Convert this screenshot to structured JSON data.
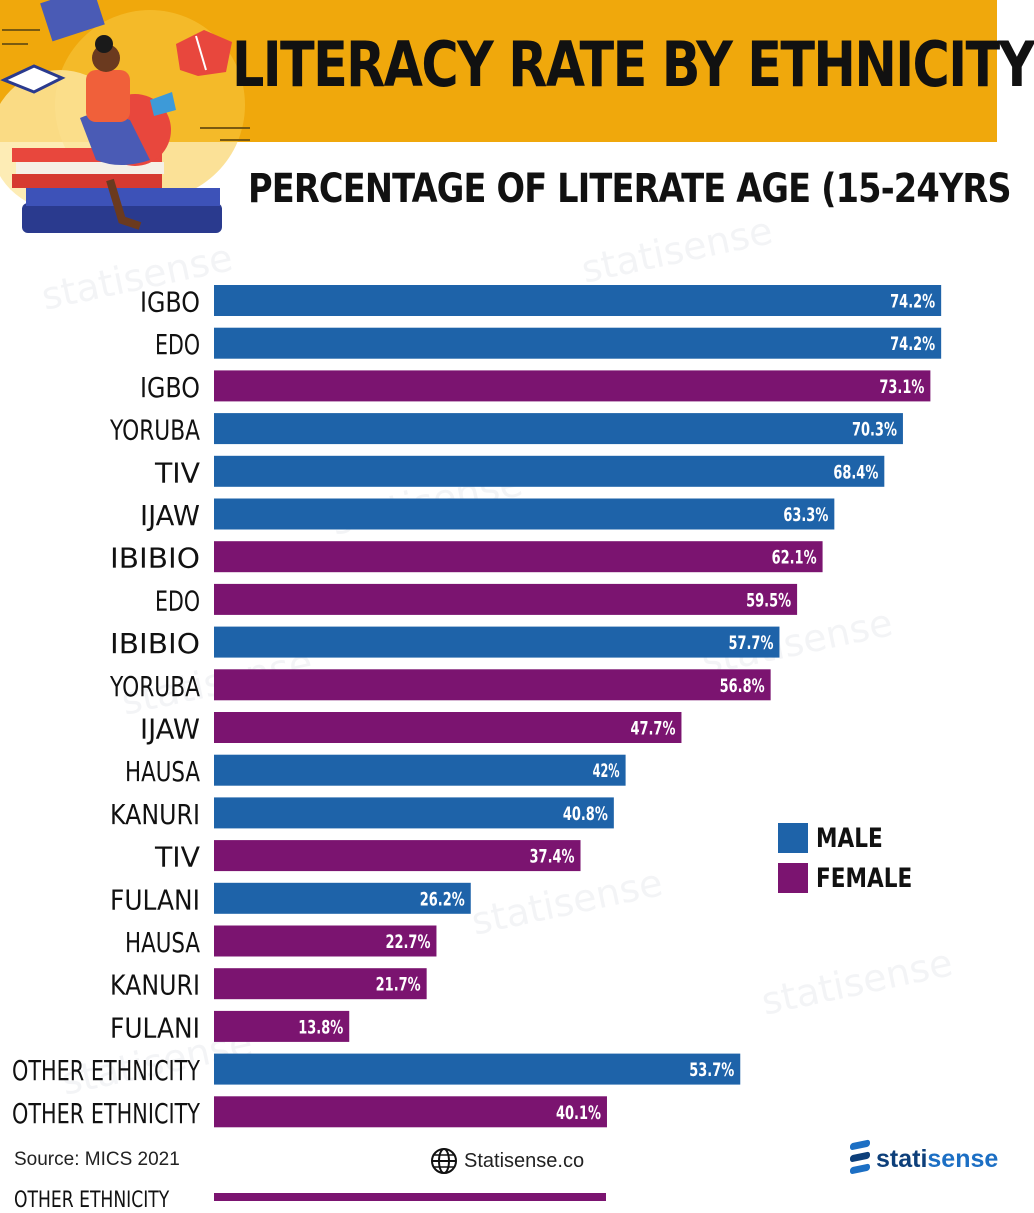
{
  "header": {
    "title": "LITERACY RATE BY ETHNICITY",
    "subtitle": "PERCENTAGE OF LITERATE AGE (15-24YRS"
  },
  "watermark_text": "statisense",
  "colors": {
    "male": "#1e63a9",
    "female": "#7b1470",
    "header_band": "#f0a80c"
  },
  "legend": {
    "male_label": "MALE",
    "female_label": "FEMALE"
  },
  "chart_data": {
    "type": "bar",
    "orientation": "horizontal",
    "title": "LITERACY RATE BY ETHNICITY",
    "subtitle": "PERCENTAGE OF LITERATE AGE (15-24YRS",
    "xlim": [
      0,
      100
    ],
    "grid": false,
    "legend_position": "right",
    "bars": [
      {
        "category": "IGBO",
        "series": "MALE",
        "value": 74.2,
        "label": "74.2%"
      },
      {
        "category": "EDO",
        "series": "MALE",
        "value": 74.2,
        "label": "74.2%"
      },
      {
        "category": "IGBO",
        "series": "FEMALE",
        "value": 73.1,
        "label": "73.1%"
      },
      {
        "category": "YORUBA",
        "series": "MALE",
        "value": 70.3,
        "label": "70.3%"
      },
      {
        "category": "TIV",
        "series": "MALE",
        "value": 68.4,
        "label": "68.4%"
      },
      {
        "category": "IJAW",
        "series": "MALE",
        "value": 63.3,
        "label": "63.3%"
      },
      {
        "category": "IBIBIO",
        "series": "FEMALE",
        "value": 62.1,
        "label": "62.1%"
      },
      {
        "category": "EDO",
        "series": "FEMALE",
        "value": 59.5,
        "label": "59.5%"
      },
      {
        "category": "IBIBIO",
        "series": "MALE",
        "value": 57.7,
        "label": "57.7%"
      },
      {
        "category": "YORUBA",
        "series": "FEMALE",
        "value": 56.8,
        "label": "56.8%"
      },
      {
        "category": "IJAW",
        "series": "FEMALE",
        "value": 47.7,
        "label": "47.7%"
      },
      {
        "category": "HAUSA",
        "series": "MALE",
        "value": 42,
        "label": "42%"
      },
      {
        "category": "KANURI",
        "series": "MALE",
        "value": 40.8,
        "label": "40.8%"
      },
      {
        "category": "TIV",
        "series": "FEMALE",
        "value": 37.4,
        "label": "37.4%"
      },
      {
        "category": "FULANI",
        "series": "MALE",
        "value": 26.2,
        "label": "26.2%"
      },
      {
        "category": "HAUSA",
        "series": "FEMALE",
        "value": 22.7,
        "label": "22.7%"
      },
      {
        "category": "KANURI",
        "series": "FEMALE",
        "value": 21.7,
        "label": "21.7%"
      },
      {
        "category": "FULANI",
        "series": "FEMALE",
        "value": 13.8,
        "label": "13.8%"
      },
      {
        "category": "OTHER ETHNICITY",
        "series": "MALE",
        "value": 53.7,
        "label": "53.7%"
      },
      {
        "category": "OTHER ETHNICITY",
        "series": "FEMALE",
        "value": 40.1,
        "label": "40.1%"
      }
    ]
  },
  "footer": {
    "source": "Source: MICS 2021",
    "site": "Statisense.co",
    "logo_text_main": "stati",
    "logo_text_accent": "sense",
    "cutoff_text": "OTHER ETHNICITY"
  }
}
